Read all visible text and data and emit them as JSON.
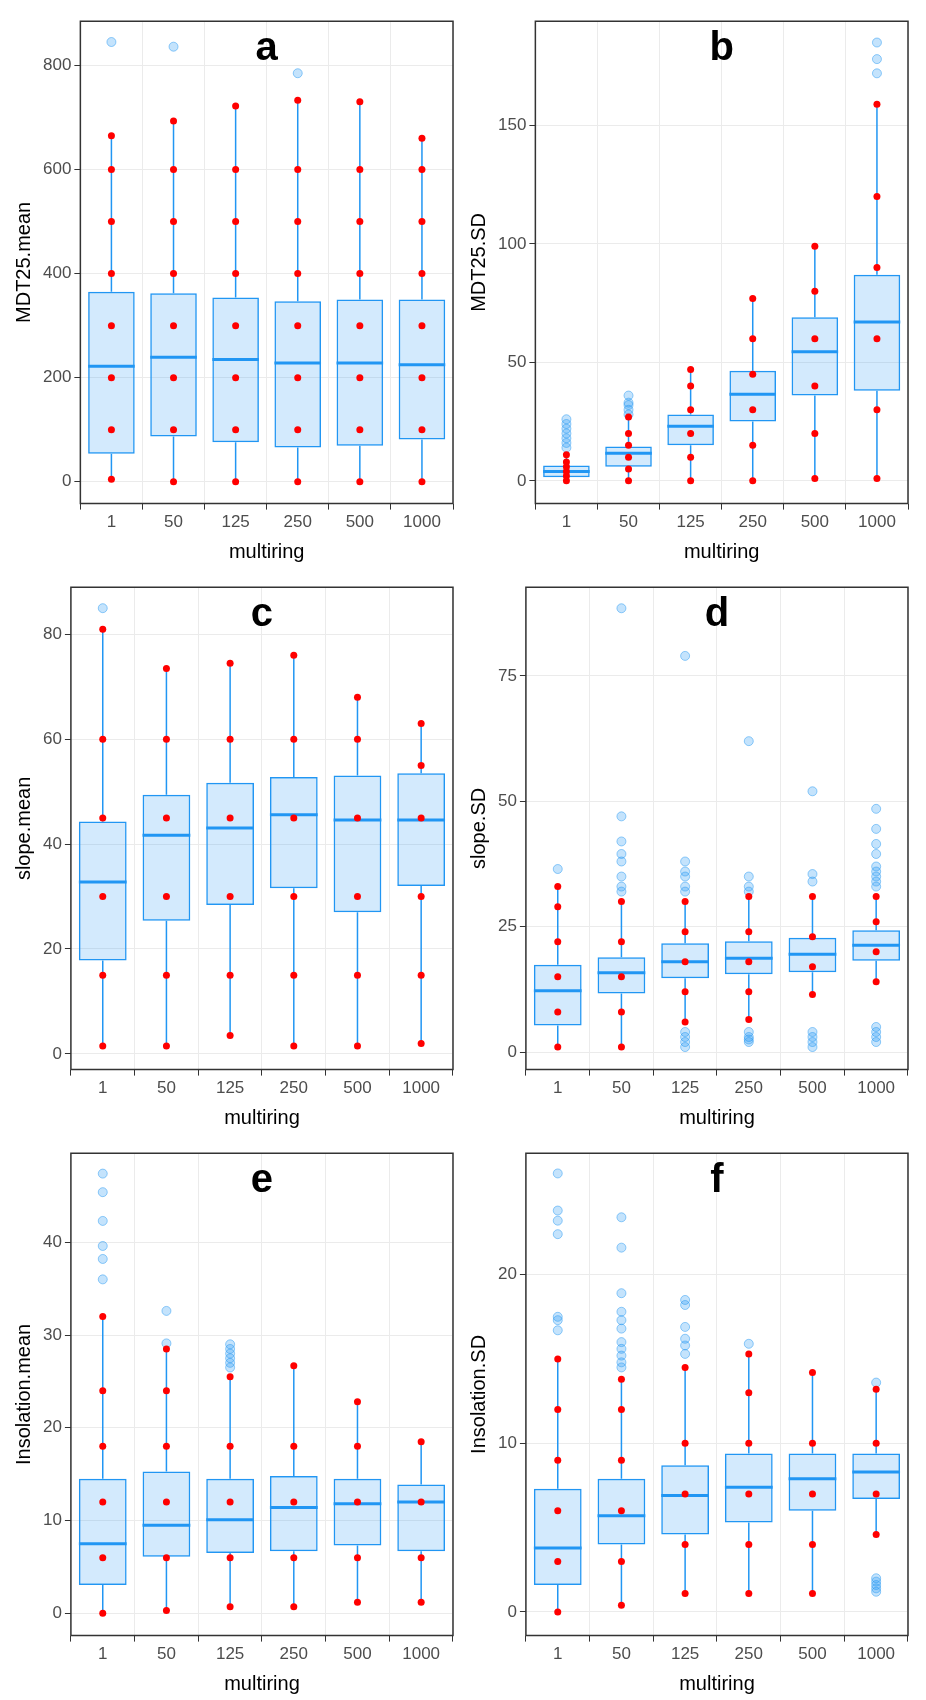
{
  "chart_data": [
    {
      "type": "box",
      "title": "a",
      "xlabel": "multiring",
      "ylabel": "MDT25.mean",
      "categories": [
        "1",
        "50",
        "125",
        "250",
        "500",
        "1000"
      ],
      "ylim": [
        -42,
        885
      ],
      "yticks": [
        0,
        200,
        400,
        600,
        800
      ],
      "grid": true,
      "series": [
        {
          "type": "box",
          "color": "#2196f3",
          "boxes": [
            {
              "low": 5,
              "q1": 54,
              "median": 222,
              "q3": 365,
              "high": 665,
              "outliers": [
                845
              ]
            },
            {
              "low": 0,
              "q1": 87,
              "median": 239,
              "q3": 362,
              "high": 693,
              "outliers": [
                836
              ]
            },
            {
              "low": 0,
              "q1": 76,
              "median": 235,
              "q3": 354,
              "high": 722
            },
            {
              "low": 0,
              "q1": 66,
              "median": 228,
              "q3": 347,
              "high": 733,
              "outliers": [
                785
              ]
            },
            {
              "low": 0,
              "q1": 69,
              "median": 228,
              "q3": 350,
              "high": 730
            },
            {
              "low": 0,
              "q1": 81,
              "median": 225,
              "q3": 350,
              "high": 660
            }
          ]
        },
        {
          "type": "scatter",
          "color": "#ff0000",
          "values": [
            5,
            0,
            0,
            0,
            0,
            0
          ]
        },
        {
          "type": "scatter",
          "color": "#ff0000",
          "values": [
            100,
            100,
            100,
            100,
            100,
            100
          ]
        },
        {
          "type": "scatter",
          "color": "#ff0000",
          "values": [
            200,
            200,
            200,
            200,
            200,
            200
          ]
        },
        {
          "type": "scatter",
          "color": "#ff0000",
          "values": [
            300,
            300,
            300,
            300,
            300,
            300
          ]
        },
        {
          "type": "scatter",
          "color": "#ff0000",
          "values": [
            400,
            400,
            400,
            400,
            400,
            400
          ]
        },
        {
          "type": "scatter",
          "color": "#ff0000",
          "values": [
            500,
            500,
            500,
            500,
            500,
            500
          ]
        },
        {
          "type": "scatter",
          "color": "#ff0000",
          "values": [
            600,
            600,
            600,
            600,
            600,
            600
          ]
        },
        {
          "type": "scatter",
          "color": "#ff0000",
          "values": [
            665,
            693,
            722,
            733,
            730,
            660
          ]
        }
      ]
    },
    {
      "type": "box",
      "title": "b",
      "xlabel": "multiring",
      "ylabel": "MDT25.SD",
      "categories": [
        "1",
        "50",
        "125",
        "250",
        "500",
        "1000"
      ],
      "ylim": [
        -9.6,
        194
      ],
      "yticks": [
        0,
        50,
        100,
        150
      ],
      "grid": true,
      "series": [
        {
          "type": "box",
          "color": "#2196f3",
          "boxes": [
            {
              "low": 0,
              "q1": 1.5,
              "median": 4,
              "q3": 6.5,
              "high": 11,
              "outliers": [
                14,
                16,
                18,
                20,
                22,
                24,
                26
              ]
            },
            {
              "low": 0,
              "q1": 6,
              "median": 11.7,
              "q3": 14.5,
              "high": 27,
              "outliers": [
                28,
                30,
                32,
                33,
                36
              ]
            },
            {
              "low": 0,
              "q1": 15,
              "median": 23,
              "q3": 28,
              "high": 47
            },
            {
              "low": 0,
              "q1": 25,
              "median": 36.5,
              "q3": 46.5,
              "high": 77
            },
            {
              "low": 1,
              "q1": 36,
              "median": 54.5,
              "q3": 69,
              "high": 99
            },
            {
              "low": 1,
              "q1": 38,
              "median": 67,
              "q3": 87,
              "high": 159,
              "outliers": [
                172,
                178,
                185
              ]
            }
          ]
        },
        {
          "type": "scatter",
          "color": "#ff0000",
          "values": [
            0,
            0,
            0,
            0,
            1,
            1
          ]
        },
        {
          "type": "scatter",
          "color": "#ff0000",
          "values": [
            2,
            5,
            10,
            15,
            20,
            30
          ]
        },
        {
          "type": "scatter",
          "color": "#ff0000",
          "values": [
            4,
            10,
            20,
            30,
            40,
            60
          ]
        },
        {
          "type": "scatter",
          "color": "#ff0000",
          "values": [
            6,
            15,
            30,
            45,
            60,
            90
          ]
        },
        {
          "type": "scatter",
          "color": "#ff0000",
          "values": [
            8,
            20,
            40,
            60,
            80,
            120
          ]
        },
        {
          "type": "scatter",
          "color": "#ff0000",
          "values": [
            11,
            27,
            47,
            77,
            99,
            159
          ]
        }
      ]
    },
    {
      "type": "box",
      "title": "c",
      "xlabel": "multiring",
      "ylabel": "slope.mean",
      "categories": [
        "1",
        "50",
        "125",
        "250",
        "500",
        "1000"
      ],
      "ylim": [
        -3,
        89
      ],
      "yticks": [
        0,
        20,
        40,
        60,
        80
      ],
      "grid": true,
      "series": [
        {
          "type": "box",
          "color": "#2196f3",
          "boxes": [
            {
              "low": 1.5,
              "q1": 17.8,
              "median": 32.8,
              "q3": 44.3,
              "high": 81,
              "outliers": [
                85
              ]
            },
            {
              "low": 1.5,
              "q1": 25.4,
              "median": 41.7,
              "q3": 49.4,
              "high": 73.5
            },
            {
              "low": 3.5,
              "q1": 28.4,
              "median": 43.1,
              "q3": 51.7,
              "high": 74.5
            },
            {
              "low": 1.5,
              "q1": 31.6,
              "median": 45.6,
              "q3": 52.8,
              "high": 76
            },
            {
              "low": 1.5,
              "q1": 27,
              "median": 44.6,
              "q3": 53.1,
              "high": 68
            },
            {
              "low": 2,
              "q1": 32,
              "median": 44.6,
              "q3": 53.5,
              "high": 63
            }
          ]
        },
        {
          "type": "scatter",
          "color": "#ff0000",
          "values": [
            1.5,
            1.5,
            3.5,
            1.5,
            1.5,
            2
          ]
        },
        {
          "type": "scatter",
          "color": "#ff0000",
          "values": [
            15,
            15,
            15,
            15,
            15,
            15
          ]
        },
        {
          "type": "scatter",
          "color": "#ff0000",
          "values": [
            30,
            30,
            30,
            30,
            30,
            30
          ]
        },
        {
          "type": "scatter",
          "color": "#ff0000",
          "values": [
            45,
            45,
            45,
            45,
            45,
            45
          ]
        },
        {
          "type": "scatter",
          "color": "#ff0000",
          "values": [
            60,
            60,
            60,
            60,
            60,
            55
          ]
        },
        {
          "type": "scatter",
          "color": "#ff0000",
          "values": [
            81,
            73.5,
            74.5,
            76,
            68,
            63
          ]
        }
      ]
    },
    {
      "type": "box",
      "title": "d",
      "xlabel": "multiring",
      "ylabel": "slope.SD",
      "categories": [
        "1",
        "50",
        "125",
        "250",
        "500",
        "1000"
      ],
      "ylim": [
        -3.5,
        92.7
      ],
      "yticks": [
        0,
        25,
        50,
        75
      ],
      "grid": true,
      "series": [
        {
          "type": "box",
          "color": "#2196f3",
          "boxes": [
            {
              "low": 1,
              "q1": 5.3,
              "median": 12.2,
              "q3": 17.4,
              "high": 33,
              "outliers": [
                36.5
              ]
            },
            {
              "low": 1,
              "q1": 11.7,
              "median": 15.8,
              "q3": 18.9,
              "high": 30,
              "outliers": [
                32,
                33,
                35,
                38,
                39.5,
                42,
                47,
                88.5
              ]
            },
            {
              "low": 6,
              "q1": 14.7,
              "median": 18,
              "q3": 21.7,
              "high": 30,
              "outliers": [
                1,
                2,
                3,
                4,
                32,
                33,
                35,
                36,
                38,
                79
              ]
            },
            {
              "low": 6.5,
              "q1": 15.5,
              "median": 18.7,
              "q3": 22.1,
              "high": 31,
              "outliers": [
                2,
                2.5,
                3,
                4,
                32,
                33,
                35,
                62
              ]
            },
            {
              "low": 11.5,
              "q1": 15.9,
              "median": 19.5,
              "q3": 22.8,
              "high": 31,
              "outliers": [
                1,
                2,
                3,
                4,
                34,
                35.5,
                52
              ]
            },
            {
              "low": 14,
              "q1": 18.2,
              "median": 21.3,
              "q3": 24.3,
              "high": 31,
              "outliers": [
                2,
                3,
                4,
                5,
                33,
                34,
                35,
                36,
                37,
                39.5,
                41.5,
                44.5,
                48.5
              ]
            }
          ]
        },
        {
          "type": "scatter",
          "color": "#ff0000",
          "values": [
            1,
            1,
            6,
            6.5,
            11.5,
            14
          ]
        },
        {
          "type": "scatter",
          "color": "#ff0000",
          "values": [
            8,
            8,
            12,
            12,
            17,
            20
          ]
        },
        {
          "type": "scatter",
          "color": "#ff0000",
          "values": [
            15,
            15,
            18,
            18,
            23,
            26
          ]
        },
        {
          "type": "scatter",
          "color": "#ff0000",
          "values": [
            22,
            22,
            24,
            24,
            31,
            31
          ]
        },
        {
          "type": "scatter",
          "color": "#ff0000",
          "values": [
            29,
            30,
            30,
            31,
            null,
            null
          ]
        },
        {
          "type": "scatter",
          "color": "#ff0000",
          "values": [
            33,
            null,
            null,
            null,
            null,
            null
          ]
        }
      ]
    },
    {
      "type": "box",
      "title": "e",
      "xlabel": "multiring",
      "ylabel": "Insolation.mean",
      "categories": [
        "1",
        "50",
        "125",
        "250",
        "500",
        "1000"
      ],
      "ylim": [
        -2.4,
        49.6
      ],
      "yticks": [
        0,
        10,
        20,
        30,
        40
      ],
      "grid": true,
      "series": [
        {
          "type": "box",
          "color": "#2196f3",
          "boxes": [
            {
              "low": 0,
              "q1": 3.05,
              "median": 7.5,
              "q3": 14.5,
              "high": 32,
              "outliers": [
                36,
                38.2,
                39.6,
                42.3,
                45.4,
                47.4
              ]
            },
            {
              "low": 0.3,
              "q1": 6.1,
              "median": 9.5,
              "q3": 15.3,
              "high": 28.5,
              "outliers": [
                29.1,
                32.6
              ]
            },
            {
              "low": 0.7,
              "q1": 6.5,
              "median": 10.1,
              "q3": 14.5,
              "high": 25.5,
              "outliers": [
                26.5,
                27,
                27.5,
                28,
                28.5,
                29
              ]
            },
            {
              "low": 0.7,
              "q1": 6.7,
              "median": 11.4,
              "q3": 14.8,
              "high": 26.7
            },
            {
              "low": 1.2,
              "q1": 7.3,
              "median": 11.8,
              "q3": 14.5,
              "high": 22.8
            },
            {
              "low": 1.2,
              "q1": 6.7,
              "median": 12,
              "q3": 13.9,
              "high": 18.5
            }
          ]
        },
        {
          "type": "scatter",
          "color": "#ff0000",
          "values": [
            0,
            0.3,
            0.7,
            0.7,
            1.2,
            1.2
          ]
        },
        {
          "type": "scatter",
          "color": "#ff0000",
          "values": [
            6,
            6,
            6,
            6,
            6,
            6
          ]
        },
        {
          "type": "scatter",
          "color": "#ff0000",
          "values": [
            12,
            12,
            12,
            12,
            12,
            12
          ]
        },
        {
          "type": "scatter",
          "color": "#ff0000",
          "values": [
            18,
            18,
            18,
            18,
            18,
            18.5
          ]
        },
        {
          "type": "scatter",
          "color": "#ff0000",
          "values": [
            24,
            24,
            25.5,
            26.7,
            22.8,
            null
          ]
        },
        {
          "type": "scatter",
          "color": "#ff0000",
          "values": [
            32,
            28.5,
            null,
            null,
            null,
            null
          ]
        }
      ]
    },
    {
      "type": "box",
      "title": "f",
      "xlabel": "multiring",
      "ylabel": "Insolation.SD",
      "categories": [
        "1",
        "50",
        "125",
        "250",
        "500",
        "1000"
      ],
      "ylim": [
        -1.4,
        27.2
      ],
      "yticks": [
        0,
        10,
        20
      ],
      "grid": true,
      "series": [
        {
          "type": "box",
          "color": "#2196f3",
          "boxes": [
            {
              "low": 0,
              "q1": 1.6,
              "median": 3.8,
              "q3": 7.3,
              "high": 15,
              "outliers": [
                16.7,
                17.3,
                17.5,
                22.4,
                23.2,
                23.8,
                26
              ]
            },
            {
              "low": 0.4,
              "q1": 4,
              "median": 5.7,
              "q3": 7.9,
              "high": 13.8,
              "outliers": [
                14.5,
                14.8,
                15.2,
                15.6,
                16,
                16.8,
                17.3,
                17.8,
                18.9,
                21.6,
                23.4
              ]
            },
            {
              "low": 1.1,
              "q1": 4.6,
              "median": 6.9,
              "q3": 8.7,
              "high": 14.5,
              "outliers": [
                15.3,
                15.8,
                16.2,
                16.9,
                18.2,
                18.5
              ]
            },
            {
              "low": 1.1,
              "q1": 5.3,
              "median": 7.4,
              "q3": 9.4,
              "high": 15.3,
              "outliers": [
                15.9
              ]
            },
            {
              "low": 1.1,
              "q1": 6,
              "median": 7.9,
              "q3": 9.4,
              "high": 14.2
            },
            {
              "low": 4.6,
              "q1": 6.7,
              "median": 8.3,
              "q3": 9.4,
              "high": 13.2,
              "outliers": [
                1.2,
                1.4,
                1.6,
                1.8,
                2,
                13.6
              ]
            }
          ]
        },
        {
          "type": "scatter",
          "color": "#ff0000",
          "values": [
            0,
            0.4,
            1.1,
            1.1,
            1.1,
            4.6
          ]
        },
        {
          "type": "scatter",
          "color": "#ff0000",
          "values": [
            3,
            3,
            4,
            4,
            4,
            7
          ]
        },
        {
          "type": "scatter",
          "color": "#ff0000",
          "values": [
            6,
            6,
            7,
            7,
            7,
            10
          ]
        },
        {
          "type": "scatter",
          "color": "#ff0000",
          "values": [
            9,
            9,
            10,
            10,
            10,
            13.2
          ]
        },
        {
          "type": "scatter",
          "color": "#ff0000",
          "values": [
            12,
            12,
            14.5,
            13,
            14.2,
            null
          ]
        },
        {
          "type": "scatter",
          "color": "#ff0000",
          "values": [
            15,
            13.8,
            null,
            15.3,
            null,
            null
          ]
        }
      ]
    }
  ]
}
